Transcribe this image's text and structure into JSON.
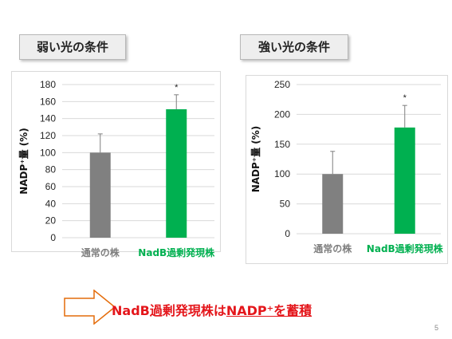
{
  "titles": {
    "left": "弱い光の条件",
    "right": "強い光の条件"
  },
  "chart_data": [
    {
      "type": "bar",
      "title": "弱い光の条件",
      "ylabel": "NADP⁺量 (%)",
      "categories": [
        "通常の株",
        "NadB過剰発現株"
      ],
      "values": [
        100,
        151
      ],
      "error_upper": [
        22,
        17
      ],
      "significance": [
        "",
        "*"
      ],
      "bar_colors": [
        "#808080",
        "#00b050"
      ],
      "category_label_colors": [
        "#7f7f7f",
        "#00b050"
      ],
      "ylim": [
        0,
        180
      ],
      "yticks": [
        0,
        20,
        40,
        60,
        80,
        100,
        120,
        140,
        160,
        180
      ],
      "grid": true
    },
    {
      "type": "bar",
      "title": "強い光の条件",
      "ylabel": "NADP⁺量 (%)",
      "categories": [
        "通常の株",
        "NadB過剰発現株"
      ],
      "values": [
        100,
        178
      ],
      "error_upper": [
        38,
        37
      ],
      "significance": [
        "",
        "*"
      ],
      "bar_colors": [
        "#808080",
        "#00b050"
      ],
      "category_label_colors": [
        "#7f7f7f",
        "#00b050"
      ],
      "ylim": [
        0,
        250
      ],
      "yticks": [
        0,
        50,
        100,
        150,
        200,
        250
      ],
      "grid": true
    }
  ],
  "conclusion": {
    "part1": "NadB過剰発現株は",
    "part2": "NADP⁺を蓄積"
  },
  "colors": {
    "accent": "#e4161b",
    "arrow_stroke": "#e46c0a",
    "green": "#00b050",
    "gray": "#808080"
  },
  "page_number": "5"
}
